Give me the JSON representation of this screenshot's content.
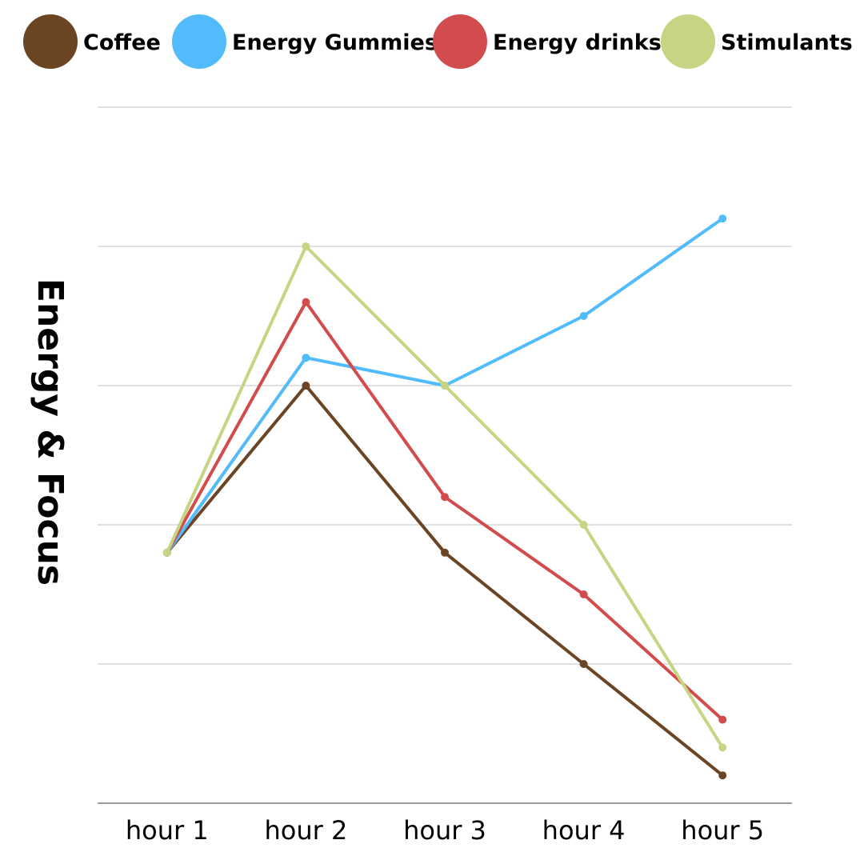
{
  "chart_data": {
    "type": "line",
    "title": "",
    "xlabel": "",
    "ylabel": "Energy & Focus",
    "categories": [
      "hour 1",
      "hour 2",
      "hour 3",
      "hour 4",
      "hour 5"
    ],
    "ylim": [
      0,
      10
    ],
    "y_gridlines": [
      0,
      2,
      4,
      6,
      8,
      10
    ],
    "grid": true,
    "y_tick_labels_shown": false,
    "legend_position": "top",
    "series": [
      {
        "name": "Coffee",
        "color": "#6b4423",
        "values": [
          3.6,
          6.0,
          3.6,
          2.0,
          0.4
        ]
      },
      {
        "name": "Energy Gummies",
        "color": "#52bbfb",
        "values": [
          3.6,
          6.4,
          6.0,
          7.0,
          8.4
        ]
      },
      {
        "name": "Energy drinks",
        "color": "#d24b4d",
        "values": [
          3.6,
          7.2,
          4.4,
          3.0,
          1.2
        ]
      },
      {
        "name": "Stimulants",
        "color": "#c6d583",
        "values": [
          3.6,
          8.0,
          6.0,
          4.0,
          0.8
        ]
      }
    ]
  }
}
